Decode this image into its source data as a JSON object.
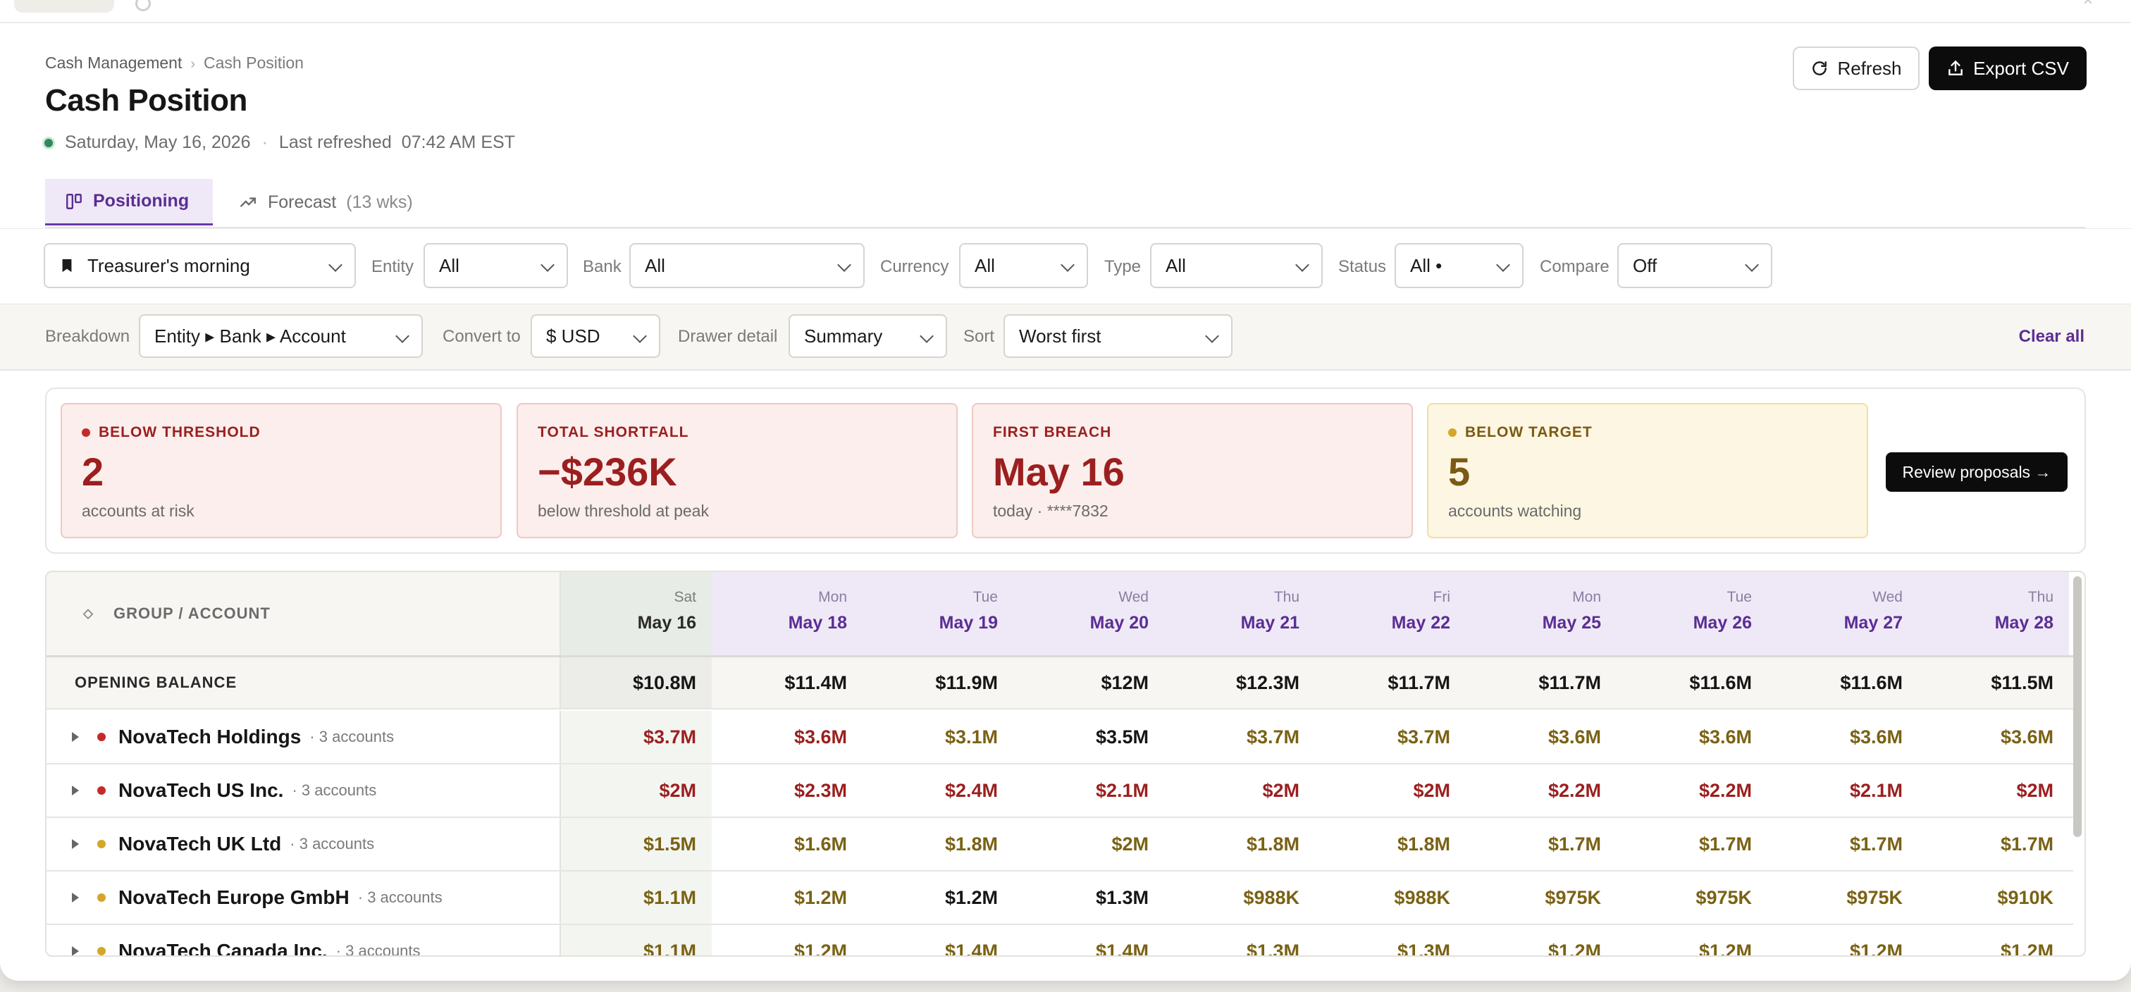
{
  "header": {
    "breadcrumb": [
      "Cash Management",
      "Cash Position"
    ],
    "title": "Cash Position",
    "date": "Saturday, May 16, 2026",
    "refreshed_label": "Last refreshed",
    "refreshed_time": "07:42 AM EST",
    "refresh_label": "Refresh",
    "export_label": "Export CSV"
  },
  "tabs": [
    {
      "label": "Positioning",
      "active": true
    },
    {
      "label": "Forecast",
      "count": "(13 wks)"
    }
  ],
  "filters": {
    "view": "Treasurer's morning",
    "entity": {
      "label": "Entity",
      "value": "All"
    },
    "bank": {
      "label": "Bank",
      "value": "All"
    },
    "currency": {
      "label": "Currency",
      "value": "All"
    },
    "type": {
      "label": "Type",
      "value": "All"
    },
    "status": {
      "label": "Status",
      "value": "All •"
    },
    "compare": {
      "label": "Compare",
      "value": "Off"
    }
  },
  "options": {
    "breakdown": {
      "label": "Breakdown",
      "value": "Entity ▸ Bank ▸ Account"
    },
    "convert": {
      "label": "Convert to",
      "value": "$ USD"
    },
    "drawer": {
      "label": "Drawer detail",
      "value": "Summary"
    },
    "sort": {
      "label": "Sort",
      "value": "Worst first"
    },
    "clear_label": "Clear all"
  },
  "summary": [
    {
      "label": "BELOW THRESHOLD",
      "value": "2",
      "sub": "accounts at risk",
      "tone": "red",
      "dot": true
    },
    {
      "label": "TOTAL SHORTFALL",
      "value": "−$236K",
      "sub": "below threshold at peak",
      "tone": "red",
      "dot": false
    },
    {
      "label": "FIRST BREACH",
      "value": "May 16",
      "sub": "today · ****7832",
      "tone": "red",
      "dot": false
    },
    {
      "label": "BELOW TARGET",
      "value": "5",
      "sub": "accounts watching",
      "tone": "yel",
      "dot": true
    }
  ],
  "review_label": "Review proposals →",
  "colors": {
    "red": "#9b1f1f",
    "yellow": "#7a6214",
    "accent": "#5b2e93",
    "green": "#2e8a5b"
  },
  "table": {
    "group_header": "GROUP / ACCOUNT",
    "columns": [
      {
        "dow": "Sat",
        "date": "May 16"
      },
      {
        "dow": "Mon",
        "date": "May 18"
      },
      {
        "dow": "Tue",
        "date": "May 19"
      },
      {
        "dow": "Wed",
        "date": "May 20"
      },
      {
        "dow": "Thu",
        "date": "May 21"
      },
      {
        "dow": "Fri",
        "date": "May 22"
      },
      {
        "dow": "Mon",
        "date": "May 25"
      },
      {
        "dow": "Tue",
        "date": "May 26"
      },
      {
        "dow": "Wed",
        "date": "May 27"
      },
      {
        "dow": "Thu",
        "date": "May 28"
      }
    ],
    "opening": {
      "label": "OPENING BALANCE",
      "values": [
        "$10.8M",
        "$11.4M",
        "$11.9M",
        "$12M",
        "$12.3M",
        "$11.7M",
        "$11.7M",
        "$11.6M",
        "$11.6M",
        "$11.5M"
      ]
    },
    "rows": [
      {
        "name": "NovaTech Holdings",
        "accounts": "· 3 accounts",
        "status": "red",
        "values": [
          "$3.7M",
          "$3.6M",
          "$3.1M",
          "$3.5M",
          "$3.7M",
          "$3.7M",
          "$3.6M",
          "$3.6M",
          "$3.6M",
          "$3.6M"
        ],
        "tones": [
          "red",
          "red",
          "yel",
          "blk",
          "yel",
          "yel",
          "yel",
          "yel",
          "yel",
          "yel"
        ]
      },
      {
        "name": "NovaTech US Inc.",
        "accounts": "· 3 accounts",
        "status": "red",
        "values": [
          "$2M",
          "$2.3M",
          "$2.4M",
          "$2.1M",
          "$2M",
          "$2M",
          "$2.2M",
          "$2.2M",
          "$2.1M",
          "$2M"
        ],
        "tones": [
          "red",
          "red",
          "red",
          "red",
          "red",
          "red",
          "red",
          "red",
          "red",
          "red"
        ]
      },
      {
        "name": "NovaTech UK Ltd",
        "accounts": "· 3 accounts",
        "status": "yel",
        "values": [
          "$1.5M",
          "$1.6M",
          "$1.8M",
          "$2M",
          "$1.8M",
          "$1.8M",
          "$1.7M",
          "$1.7M",
          "$1.7M",
          "$1.7M"
        ],
        "tones": [
          "yel",
          "yel",
          "yel",
          "yel",
          "yel",
          "yel",
          "yel",
          "yel",
          "yel",
          "yel"
        ]
      },
      {
        "name": "NovaTech Europe GmbH",
        "accounts": "· 3 accounts",
        "status": "yel",
        "values": [
          "$1.1M",
          "$1.2M",
          "$1.2M",
          "$1.3M",
          "$988K",
          "$988K",
          "$975K",
          "$975K",
          "$975K",
          "$910K"
        ],
        "tones": [
          "yel",
          "yel",
          "blk",
          "blk",
          "yel",
          "yel",
          "yel",
          "yel",
          "yel",
          "yel"
        ]
      },
      {
        "name": "NovaTech Canada Inc.",
        "accounts": "· 3 accounts",
        "status": "yel",
        "values": [
          "$1.1M",
          "$1.2M",
          "$1.4M",
          "$1.4M",
          "$1.3M",
          "$1.3M",
          "$1.2M",
          "$1.2M",
          "$1.2M",
          "$1.2M"
        ],
        "tones": [
          "yel",
          "yel",
          "yel",
          "yel",
          "yel",
          "yel",
          "yel",
          "yel",
          "yel",
          "yel"
        ]
      }
    ]
  }
}
